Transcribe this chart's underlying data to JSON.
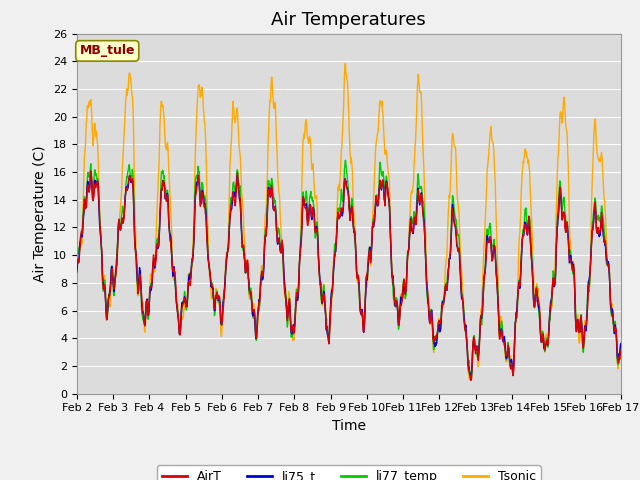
{
  "title": "Air Temperatures",
  "xlabel": "Time",
  "ylabel": "Air Temperature (C)",
  "ylim": [
    0,
    26
  ],
  "bg_color": "#dcdcdc",
  "plot_bg": "#dcdcdc",
  "xtick_labels": [
    "Feb 2",
    "Feb 3",
    "Feb 4",
    "Feb 5",
    "Feb 6",
    "Feb 7",
    "Feb 8",
    "Feb 9",
    "Feb 10",
    "Feb 11",
    "Feb 12",
    "Feb 13",
    "Feb 14",
    "Feb 15",
    "Feb 16",
    "Feb 17"
  ],
  "legend_labels": [
    "AirT",
    "li75_t",
    "li77_temp",
    "Tsonic"
  ],
  "site_label": "MB_tule",
  "site_label_color": "#880000",
  "site_label_bg": "#ffffcc",
  "title_fontsize": 13,
  "axis_fontsize": 10,
  "tick_fontsize": 8,
  "grid_color": "#ffffff",
  "line_width": 1.0,
  "colors": {
    "AirT": "#dd0000",
    "li75_t": "#0000dd",
    "li77_temp": "#00cc00",
    "Tsonic": "#ffaa00"
  },
  "yticks": [
    0,
    2,
    4,
    6,
    8,
    10,
    12,
    14,
    16,
    18,
    20,
    22,
    24,
    26
  ],
  "n_points": 1440,
  "n_days": 15,
  "seed": 12345
}
